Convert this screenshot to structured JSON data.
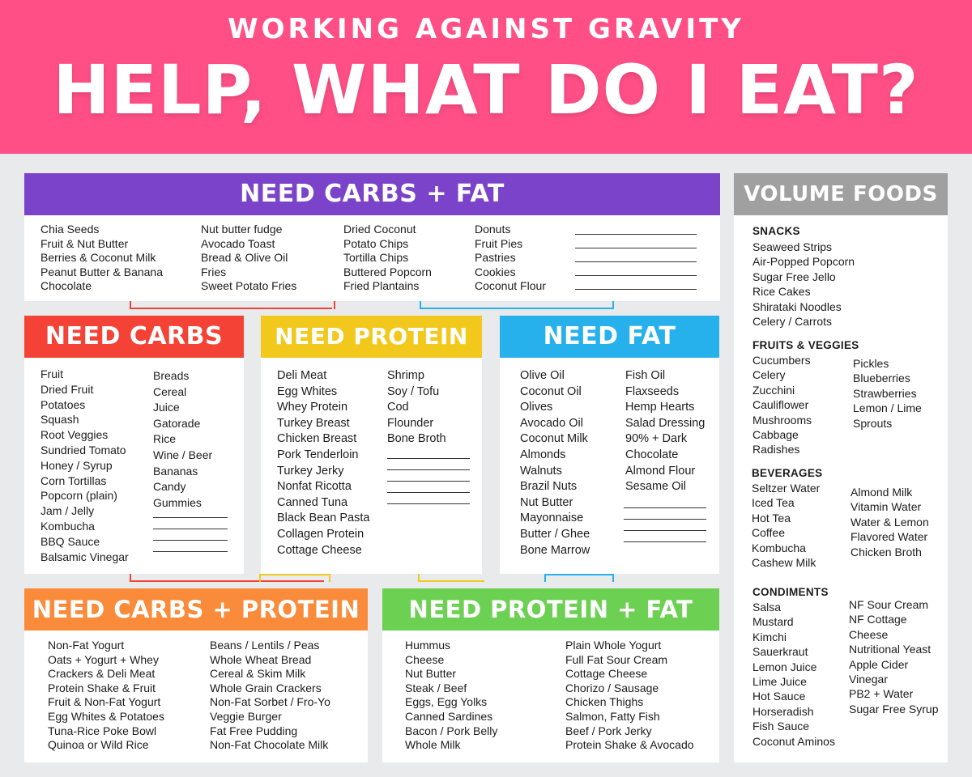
{
  "header": {
    "eyebrow": "WORKING AGAINST GRAVITY",
    "title": "HELP, WHAT DO I EAT?"
  },
  "colors": {
    "header_bg": "#ff4f86",
    "carbs_fat": "#7b43c9",
    "carbs": "#f44336",
    "protein": "#f2c81c",
    "fat": "#26b0ec",
    "carbs_protein": "#f98b3a",
    "protein_fat": "#6cd052",
    "volume": "#a0a0a0"
  },
  "carbs_fat": {
    "title": "NEED CARBS + FAT",
    "col1": [
      "Chia Seeds",
      "Fruit & Nut Butter",
      "Berries & Coconut Milk",
      "Peanut Butter & Banana",
      "Chocolate"
    ],
    "col2": [
      "Nut butter fudge",
      "Avocado Toast",
      "Bread & Olive Oil",
      "Fries",
      "Sweet Potato Fries"
    ],
    "col3": [
      "Dried Coconut",
      "Potato Chips",
      "Tortilla Chips",
      "Buttered Popcorn",
      "Fried Plantains"
    ],
    "col4": [
      "Donuts",
      "Fruit Pies",
      "Pastries",
      "Cookies",
      "Coconut Flour"
    ]
  },
  "carbs": {
    "title": "NEED CARBS",
    "col1": [
      "Fruit",
      "Dried Fruit",
      "Potatoes",
      "Squash",
      "Root Veggies",
      "Sundried Tomato",
      "Honey / Syrup",
      "Corn Tortillas",
      "Popcorn (plain)",
      "Jam / Jelly",
      "Kombucha",
      "BBQ Sauce",
      "Balsamic Vinegar"
    ],
    "col2": [
      "Breads",
      "Cereal",
      "Juice",
      "Gatorade",
      "Rice",
      "Wine / Beer",
      "Bananas",
      "Candy",
      "Gummies"
    ]
  },
  "protein": {
    "title": "NEED PROTEIN",
    "col1": [
      "Deli Meat",
      "Egg Whites",
      "Whey Protein",
      "Turkey Breast",
      "Chicken Breast",
      "Pork Tenderloin",
      "Turkey Jerky",
      "Nonfat Ricotta",
      "Canned Tuna",
      "Black Bean Pasta",
      "Collagen Protein",
      "Cottage Cheese"
    ],
    "col2": [
      "Shrimp",
      "Soy / Tofu",
      "Cod",
      "Flounder",
      "Bone Broth"
    ]
  },
  "fat": {
    "title": "NEED FAT",
    "col1": [
      "Olive Oil",
      "Coconut Oil",
      "Olives",
      "Avocado Oil",
      "Coconut Milk",
      "Almonds",
      "Walnuts",
      "Brazil Nuts",
      "Nut Butter",
      "Mayonnaise",
      "Butter / Ghee",
      "Bone Marrow"
    ],
    "col2": [
      "Fish Oil",
      "Flaxseeds",
      "Hemp Hearts",
      "Salad Dressing",
      "90% + Dark",
      "Chocolate",
      "Almond Flour",
      "Sesame Oil"
    ]
  },
  "carbs_protein": {
    "title": "NEED CARBS + PROTEIN",
    "col1": [
      "Non-Fat Yogurt",
      "Oats + Yogurt + Whey",
      "Crackers & Deli Meat",
      "Protein Shake & Fruit",
      "Fruit & Non-Fat Yogurt",
      "Egg Whites & Potatoes",
      "Tuna-Rice Poke Bowl",
      "Quinoa or Wild Rice"
    ],
    "col2": [
      "Beans / Lentils / Peas",
      "Whole Wheat Bread",
      "Cereal & Skim Milk",
      "Whole Grain Crackers",
      "Non-Fat Sorbet / Fro-Yo",
      "Veggie Burger",
      "Fat Free Pudding",
      "Non-Fat Chocolate Milk"
    ]
  },
  "protein_fat": {
    "title": "NEED PROTEIN + FAT",
    "col1": [
      "Hummus",
      "Cheese",
      "Nut Butter",
      "Steak / Beef",
      "Eggs, Egg Yolks",
      "Canned Sardines",
      "Bacon / Pork Belly",
      "Whole Milk"
    ],
    "col2": [
      "Plain Whole Yogurt",
      "Full Fat Sour Cream",
      "Cottage Cheese",
      "Chorizo / Sausage",
      "Chicken Thighs",
      "Salmon, Fatty Fish",
      "Beef / Pork Jerky",
      "Protein Shake & Avocado"
    ]
  },
  "volume": {
    "title": "VOLUME FOODS",
    "snacks": {
      "title": "SNACKS",
      "items": [
        "Seaweed Strips",
        "Air-Popped Popcorn",
        "Sugar Free Jello",
        "Rice Cakes",
        "Shirataki Noodles",
        "Celery / Carrots"
      ]
    },
    "fruits_veggies": {
      "title": "FRUITS & VEGGIES",
      "col1": [
        "Cucumbers",
        "Celery",
        "Zucchini",
        "Cauliflower",
        "Mushrooms",
        "Cabbage",
        "Radishes"
      ],
      "col2": [
        "Pickles",
        "Blueberries",
        "Strawberries",
        "Lemon / Lime",
        "Sprouts"
      ]
    },
    "beverages": {
      "title": "BEVERAGES",
      "col1": [
        "Seltzer Water",
        "Iced Tea",
        "Hot Tea",
        "Coffee",
        "Kombucha",
        "Cashew Milk"
      ],
      "col2": [
        "Almond Milk",
        "Vitamin Water",
        "Water & Lemon",
        "Flavored Water",
        "Chicken Broth"
      ]
    },
    "condiments": {
      "title": "CONDIMENTS",
      "col1": [
        "Salsa",
        "Mustard",
        "Kimchi",
        "Sauerkraut",
        "Lemon Juice",
        "Lime Juice",
        "Hot Sauce",
        "Horseradish",
        "Fish Sauce",
        "Coconut Aminos"
      ],
      "col2": [
        "NF Sour Cream",
        "NF Cottage",
        "Cheese",
        "Nutritional Yeast",
        "Apple Cider",
        "Vinegar",
        "PB2 + Water",
        "Sugar Free Syrup"
      ]
    }
  }
}
